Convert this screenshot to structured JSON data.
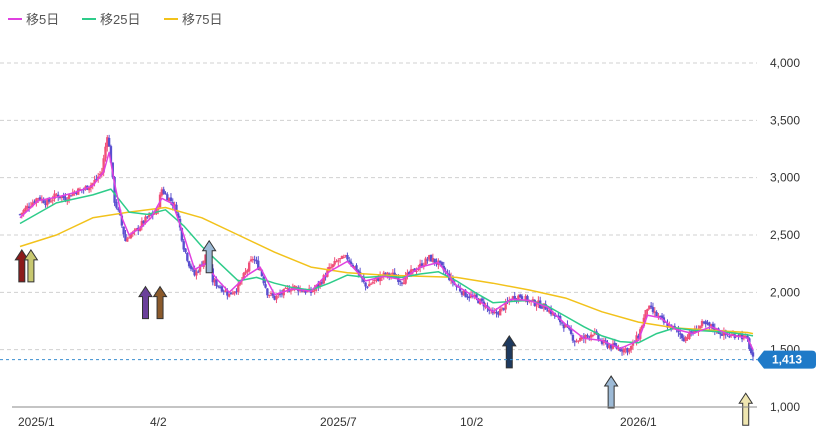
{
  "chart_data": {
    "type": "candlestick",
    "legend": [
      {
        "name": "移5日",
        "color": "#e040e0"
      },
      {
        "name": "移25日",
        "color": "#2ecc8a"
      },
      {
        "name": "移75日",
        "color": "#f2c21b"
      }
    ],
    "x_tick_labels": [
      "2025/1",
      "4/2",
      "2025/7",
      "10/2",
      "2026/1"
    ],
    "y_ticks": [
      1000,
      1500,
      2000,
      2500,
      3000,
      3500,
      4000
    ],
    "y_tick_labels": [
      "1,000",
      "1,500",
      "2,000",
      "2,500",
      "3,000",
      "3,500",
      "4,000"
    ],
    "ylim": [
      1000,
      4000
    ],
    "grid": true,
    "legend_position": "top-left",
    "current_price": 1413,
    "current_price_label": "1,413",
    "colors": {
      "up_candle": "#f0507a",
      "down_candle": "#5a4fcf",
      "current_price_line": "#3a8fd0",
      "current_price_tag": "#1f7ac8",
      "grid": "#d0d0d0"
    },
    "price_series": [
      [
        0,
        2680
      ],
      [
        5,
        2760
      ],
      [
        10,
        2830
      ],
      [
        15,
        2780
      ],
      [
        20,
        2850
      ],
      [
        25,
        2820
      ],
      [
        30,
        2880
      ],
      [
        35,
        2900
      ],
      [
        40,
        2950
      ],
      [
        45,
        3050
      ],
      [
        48,
        3380
      ],
      [
        50,
        3150
      ],
      [
        52,
        2800
      ],
      [
        55,
        2650
      ],
      [
        58,
        2450
      ],
      [
        60,
        2500
      ],
      [
        63,
        2520
      ],
      [
        66,
        2580
      ],
      [
        70,
        2650
      ],
      [
        75,
        2700
      ],
      [
        78,
        2900
      ],
      [
        80,
        2850
      ],
      [
        83,
        2800
      ],
      [
        86,
        2720
      ],
      [
        90,
        2400
      ],
      [
        93,
        2250
      ],
      [
        96,
        2150
      ],
      [
        100,
        2250
      ],
      [
        103,
        2350
      ],
      [
        106,
        2100
      ],
      [
        110,
        2050
      ],
      [
        115,
        1980
      ],
      [
        120,
        2050
      ],
      [
        125,
        2200
      ],
      [
        128,
        2300
      ],
      [
        132,
        2200
      ],
      [
        136,
        2000
      ],
      [
        140,
        1950
      ],
      [
        145,
        2000
      ],
      [
        150,
        2050
      ],
      [
        155,
        2020
      ],
      [
        160,
        2000
      ],
      [
        165,
        2080
      ],
      [
        170,
        2200
      ],
      [
        175,
        2280
      ],
      [
        180,
        2300
      ],
      [
        185,
        2200
      ],
      [
        190,
        2050
      ],
      [
        195,
        2100
      ],
      [
        200,
        2150
      ],
      [
        205,
        2150
      ],
      [
        210,
        2100
      ],
      [
        215,
        2170
      ],
      [
        220,
        2230
      ],
      [
        225,
        2300
      ],
      [
        230,
        2250
      ],
      [
        235,
        2150
      ],
      [
        240,
        2050
      ],
      [
        245,
        1980
      ],
      [
        250,
        1950
      ],
      [
        255,
        1900
      ],
      [
        260,
        1800
      ],
      [
        265,
        1850
      ],
      [
        270,
        1950
      ],
      [
        275,
        1970
      ],
      [
        280,
        1920
      ],
      [
        285,
        1900
      ],
      [
        290,
        1860
      ],
      [
        295,
        1780
      ],
      [
        300,
        1700
      ],
      [
        305,
        1580
      ],
      [
        310,
        1600
      ],
      [
        315,
        1650
      ],
      [
        320,
        1560
      ],
      [
        325,
        1530
      ],
      [
        330,
        1510
      ],
      [
        335,
        1500
      ],
      [
        340,
        1620
      ],
      [
        345,
        1870
      ],
      [
        350,
        1800
      ],
      [
        355,
        1720
      ],
      [
        360,
        1680
      ],
      [
        365,
        1600
      ],
      [
        370,
        1650
      ],
      [
        375,
        1720
      ],
      [
        380,
        1700
      ],
      [
        385,
        1650
      ],
      [
        390,
        1620
      ],
      [
        395,
        1640
      ],
      [
        400,
        1580
      ],
      [
        403,
        1413
      ]
    ],
    "ma5_series": [
      [
        0,
        2650
      ],
      [
        10,
        2800
      ],
      [
        20,
        2830
      ],
      [
        30,
        2870
      ],
      [
        40,
        2930
      ],
      [
        46,
        3050
      ],
      [
        49,
        3220
      ],
      [
        52,
        2950
      ],
      [
        56,
        2650
      ],
      [
        60,
        2500
      ],
      [
        66,
        2560
      ],
      [
        72,
        2650
      ],
      [
        78,
        2820
      ],
      [
        84,
        2770
      ],
      [
        90,
        2500
      ],
      [
        96,
        2200
      ],
      [
        102,
        2250
      ],
      [
        108,
        2120
      ],
      [
        115,
        2000
      ],
      [
        125,
        2150
      ],
      [
        132,
        2220
      ],
      [
        140,
        1980
      ],
      [
        150,
        2030
      ],
      [
        160,
        2010
      ],
      [
        170,
        2180
      ],
      [
        180,
        2270
      ],
      [
        190,
        2100
      ],
      [
        200,
        2140
      ],
      [
        210,
        2110
      ],
      [
        220,
        2220
      ],
      [
        230,
        2260
      ],
      [
        240,
        2060
      ],
      [
        250,
        1960
      ],
      [
        260,
        1830
      ],
      [
        270,
        1940
      ],
      [
        280,
        1930
      ],
      [
        290,
        1870
      ],
      [
        300,
        1720
      ],
      [
        310,
        1600
      ],
      [
        320,
        1580
      ],
      [
        330,
        1510
      ],
      [
        340,
        1580
      ],
      [
        345,
        1800
      ],
      [
        352,
        1780
      ],
      [
        360,
        1680
      ],
      [
        370,
        1640
      ],
      [
        380,
        1700
      ],
      [
        390,
        1630
      ],
      [
        400,
        1600
      ],
      [
        403,
        1500
      ]
    ],
    "ma25_series": [
      [
        0,
        2600
      ],
      [
        20,
        2780
      ],
      [
        40,
        2850
      ],
      [
        50,
        2900
      ],
      [
        60,
        2700
      ],
      [
        70,
        2680
      ],
      [
        80,
        2720
      ],
      [
        90,
        2580
      ],
      [
        100,
        2400
      ],
      [
        110,
        2250
      ],
      [
        120,
        2100
      ],
      [
        130,
        2130
      ],
      [
        140,
        2080
      ],
      [
        150,
        2040
      ],
      [
        160,
        2020
      ],
      [
        170,
        2080
      ],
      [
        180,
        2150
      ],
      [
        190,
        2130
      ],
      [
        200,
        2140
      ],
      [
        210,
        2130
      ],
      [
        220,
        2160
      ],
      [
        230,
        2180
      ],
      [
        240,
        2100
      ],
      [
        250,
        2000
      ],
      [
        260,
        1910
      ],
      [
        270,
        1920
      ],
      [
        280,
        1930
      ],
      [
        290,
        1880
      ],
      [
        300,
        1790
      ],
      [
        310,
        1700
      ],
      [
        320,
        1620
      ],
      [
        330,
        1570
      ],
      [
        340,
        1560
      ],
      [
        350,
        1640
      ],
      [
        360,
        1690
      ],
      [
        370,
        1670
      ],
      [
        380,
        1660
      ],
      [
        390,
        1650
      ],
      [
        400,
        1630
      ],
      [
        403,
        1620
      ]
    ],
    "ma75_series": [
      [
        0,
        2400
      ],
      [
        20,
        2500
      ],
      [
        40,
        2650
      ],
      [
        60,
        2700
      ],
      [
        80,
        2740
      ],
      [
        100,
        2650
      ],
      [
        120,
        2500
      ],
      [
        140,
        2350
      ],
      [
        160,
        2220
      ],
      [
        180,
        2170
      ],
      [
        200,
        2150
      ],
      [
        220,
        2140
      ],
      [
        240,
        2130
      ],
      [
        260,
        2080
      ],
      [
        280,
        2020
      ],
      [
        300,
        1950
      ],
      [
        320,
        1830
      ],
      [
        340,
        1740
      ],
      [
        360,
        1690
      ],
      [
        380,
        1670
      ],
      [
        400,
        1650
      ],
      [
        403,
        1640
      ]
    ],
    "arrows": [
      {
        "x": 1,
        "price": 2370,
        "color": "#8b1a1a"
      },
      {
        "x": 6,
        "price": 2370,
        "color": "#c8c870"
      },
      {
        "x": 69,
        "price": 2050,
        "color": "#6a3f9a"
      },
      {
        "x": 77,
        "price": 2050,
        "color": "#8b5a2b"
      },
      {
        "x": 104,
        "price": 2450,
        "color": "#9dbad6"
      },
      {
        "x": 269,
        "price": 1620,
        "color": "#1e3a5f"
      },
      {
        "x": 325,
        "price": 1270,
        "color": "#9dbad6"
      },
      {
        "x": 399,
        "price": 1120,
        "color": "#efe6b0"
      }
    ]
  }
}
